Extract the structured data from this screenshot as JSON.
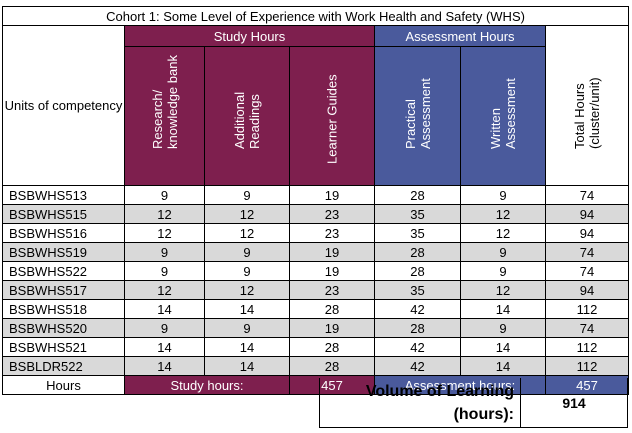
{
  "title": "Cohort 1: Some Level of Experience with Work Health and Safety (WHS)",
  "units_header": "Units of competency",
  "groups": {
    "study": "Study Hours",
    "assessment": "Assessment Hours"
  },
  "columns": {
    "research": [
      "Research/",
      "knowledge bank"
    ],
    "readings": [
      "Additional",
      "Readings"
    ],
    "guides": [
      "Learner Guides"
    ],
    "practical": [
      "Practical",
      "Assessment"
    ],
    "written": [
      "Written",
      "Assessment"
    ],
    "total": [
      "Total Hours",
      "(cluster/unit)"
    ]
  },
  "rows": [
    {
      "code": "BSBWHS513",
      "research": "9",
      "readings": "9",
      "guides": "19",
      "practical": "28",
      "written": "9",
      "total": "74"
    },
    {
      "code": "BSBWHS515",
      "research": "12",
      "readings": "12",
      "guides": "23",
      "practical": "35",
      "written": "12",
      "total": "94"
    },
    {
      "code": "BSBWHS516",
      "research": "12",
      "readings": "12",
      "guides": "23",
      "practical": "35",
      "written": "12",
      "total": "94"
    },
    {
      "code": "BSBWHS519",
      "research": "9",
      "readings": "9",
      "guides": "19",
      "practical": "28",
      "written": "9",
      "total": "74"
    },
    {
      "code": "BSBWHS522",
      "research": "9",
      "readings": "9",
      "guides": "19",
      "practical": "28",
      "written": "9",
      "total": "74"
    },
    {
      "code": "BSBWHS517",
      "research": "12",
      "readings": "12",
      "guides": "23",
      "practical": "35",
      "written": "12",
      "total": "94"
    },
    {
      "code": "BSBWHS518",
      "research": "14",
      "readings": "14",
      "guides": "28",
      "practical": "42",
      "written": "14",
      "total": "112"
    },
    {
      "code": "BSBWHS520",
      "research": "9",
      "readings": "9",
      "guides": "19",
      "practical": "28",
      "written": "9",
      "total": "74"
    },
    {
      "code": "BSBWHS521",
      "research": "14",
      "readings": "14",
      "guides": "28",
      "practical": "42",
      "written": "14",
      "total": "112"
    },
    {
      "code": "BSBLDR522",
      "research": "14",
      "readings": "14",
      "guides": "28",
      "practical": "42",
      "written": "14",
      "total": "112"
    }
  ],
  "footer": {
    "hours_label": "Hours",
    "study_label": "Study hours:",
    "study_value": "457",
    "assessment_label": "Assessment hours:",
    "assessment_value": "457"
  },
  "volume": {
    "label_line1": "Volume of Learning",
    "label_line2": "(hours):",
    "value": "914"
  },
  "colors": {
    "study": "#7e1f4e",
    "assessment": "#4a5a9c",
    "shaded_row": "#d9d9d9"
  }
}
